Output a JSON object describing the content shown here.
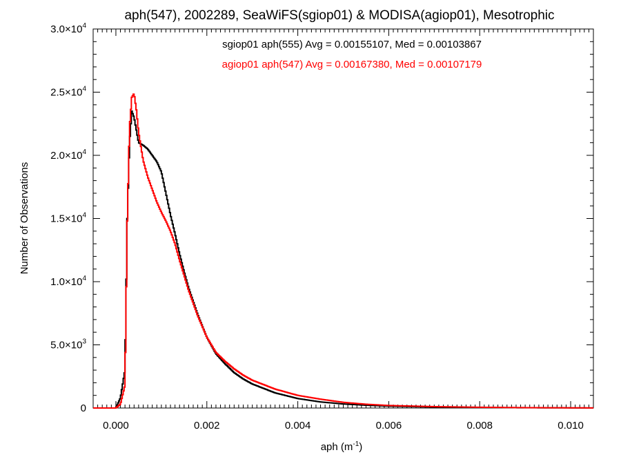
{
  "chart_data": {
    "type": "line",
    "title": "aph(547), 2002289, SeaWiFS(sgiop01) & MODISA(agiop01), Mesotrophic",
    "xlabel": {
      "base": "aph (m",
      "sup": "-1",
      "tail": ")"
    },
    "ylabel": "Number of Observations",
    "xlim": [
      -0.0005,
      0.0105
    ],
    "ylim": [
      0,
      30000
    ],
    "x_ticks": [
      {
        "value": 0.0,
        "label": "0.000"
      },
      {
        "value": 0.002,
        "label": "0.002"
      },
      {
        "value": 0.004,
        "label": "0.004"
      },
      {
        "value": 0.006,
        "label": "0.006"
      },
      {
        "value": 0.008,
        "label": "0.008"
      },
      {
        "value": 0.01,
        "label": "0.010"
      }
    ],
    "y_ticks": [
      {
        "value": 0,
        "label": "0"
      },
      {
        "value": 5000,
        "mant": "5.0×10",
        "exp": "3"
      },
      {
        "value": 10000,
        "mant": "1.0×10",
        "exp": "4"
      },
      {
        "value": 15000,
        "mant": "1.5×10",
        "exp": "4"
      },
      {
        "value": 20000,
        "mant": "2.0×10",
        "exp": "4"
      },
      {
        "value": 25000,
        "mant": "2.5×10",
        "exp": "4"
      },
      {
        "value": 30000,
        "mant": "3.0×10",
        "exp": "4"
      }
    ],
    "legend_placement": "top-center",
    "grid": false,
    "series": [
      {
        "label": "sgiop01 aph(555) Avg = 0.00155107, Med = 0.00103867",
        "color": "#000000",
        "x": [
          -0.0005,
          0.0,
          0.0001,
          0.0002,
          0.00025,
          0.0003,
          0.00035,
          0.0004,
          0.00045,
          0.0005,
          0.0006,
          0.0007,
          0.0008,
          0.0009,
          0.001,
          0.0011,
          0.0012,
          0.0013,
          0.0014,
          0.0015,
          0.0016,
          0.0018,
          0.002,
          0.0022,
          0.0024,
          0.0026,
          0.0028,
          0.003,
          0.0035,
          0.004,
          0.0045,
          0.005,
          0.0055,
          0.006,
          0.007,
          0.008,
          0.009,
          0.01,
          0.0105
        ],
        "y": [
          0,
          0,
          800,
          3000,
          15000,
          21000,
          23500,
          23000,
          22000,
          21000,
          20800,
          20500,
          20000,
          19500,
          18700,
          17000,
          15300,
          13800,
          12200,
          10800,
          9500,
          7400,
          5600,
          4300,
          3500,
          2800,
          2300,
          1900,
          1200,
          750,
          480,
          320,
          220,
          150,
          80,
          40,
          20,
          10,
          5
        ]
      },
      {
        "label": "agiop01 aph(547) Avg = 0.00167380, Med = 0.00107179",
        "color": "#ff0000",
        "x": [
          -0.0005,
          0.0,
          0.0001,
          0.0002,
          0.00025,
          0.0003,
          0.00035,
          0.0004,
          0.00045,
          0.0005,
          0.0006,
          0.0007,
          0.0008,
          0.0009,
          0.001,
          0.0011,
          0.0012,
          0.0013,
          0.0014,
          0.0015,
          0.0016,
          0.0018,
          0.002,
          0.0022,
          0.0024,
          0.0026,
          0.0028,
          0.003,
          0.0035,
          0.004,
          0.0045,
          0.005,
          0.0055,
          0.006,
          0.007,
          0.008,
          0.009,
          0.01,
          0.0105
        ],
        "y": [
          0,
          0,
          300,
          1800,
          14800,
          22200,
          24600,
          24900,
          23600,
          21800,
          19600,
          18300,
          17300,
          16300,
          15500,
          14800,
          14000,
          13000,
          11700,
          10500,
          9300,
          7300,
          5600,
          4400,
          3700,
          3100,
          2600,
          2200,
          1500,
          1000,
          700,
          450,
          300,
          200,
          110,
          60,
          30,
          15,
          8
        ]
      }
    ]
  }
}
